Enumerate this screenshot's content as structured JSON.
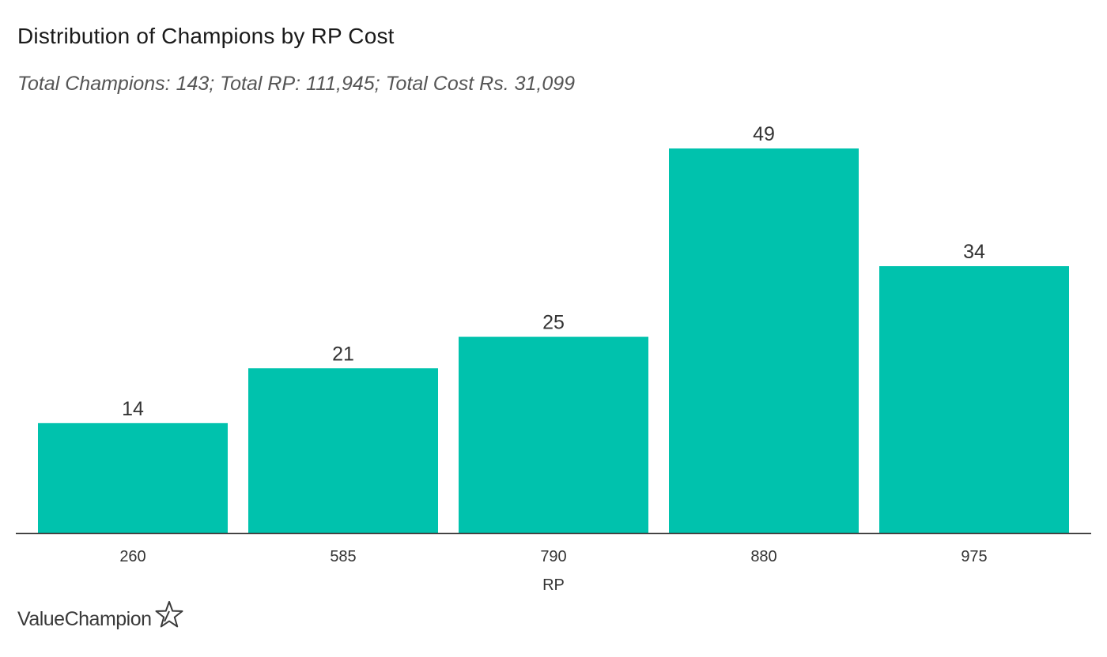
{
  "chart_data": {
    "type": "bar",
    "title": "Distribution of Champions by RP Cost",
    "subtitle": "Total Champions: 143; Total RP: 111,945; Total Cost Rs. 31,099",
    "categories": [
      "260",
      "585",
      "790",
      "880",
      "975"
    ],
    "values": [
      14,
      21,
      25,
      49,
      34
    ],
    "data_labels": [
      "14",
      "21",
      "25",
      "49",
      "34"
    ],
    "xlabel": "RP",
    "ylabel": "",
    "ylim": [
      0,
      52
    ],
    "grid": false,
    "legend": "none",
    "bar_color": "#00c2ad",
    "axis_color": "#333333"
  },
  "branding": {
    "logo_text": "ValueChampion",
    "logo_icon": "star-icon"
  }
}
